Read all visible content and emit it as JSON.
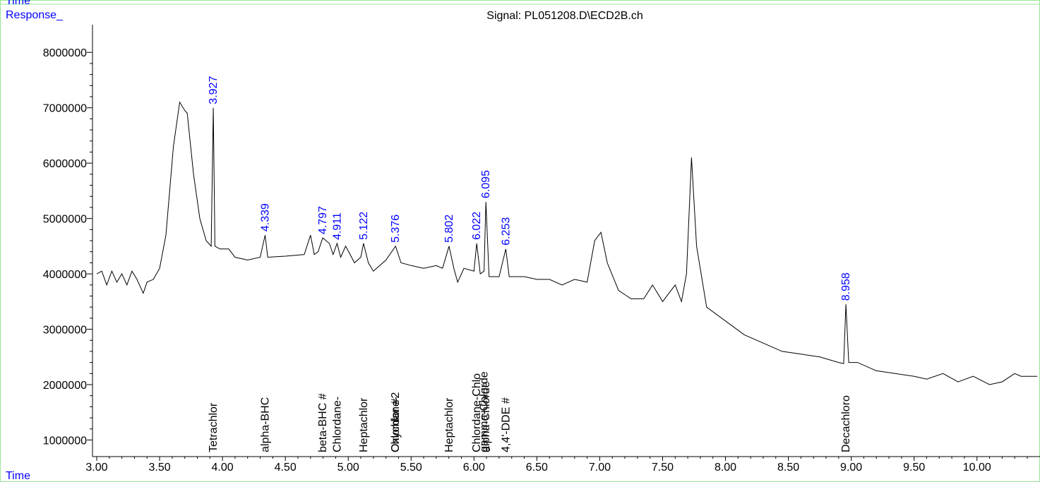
{
  "chart_data": {
    "type": "line",
    "title": "Signal: PL051208.D\\ECD2B.ch",
    "y_label": "Response_",
    "x_label": "Time",
    "top_label": "Time",
    "color": "#000000",
    "label_color": "#0000ff",
    "x": [
      3.0,
      3.04,
      3.08,
      3.12,
      3.16,
      3.2,
      3.24,
      3.28,
      3.32,
      3.35,
      3.37,
      3.4,
      3.45,
      3.5,
      3.55,
      3.58,
      3.61,
      3.66,
      3.7,
      3.72,
      3.77,
      3.82,
      3.87,
      3.91,
      3.927,
      3.94,
      3.98,
      4.05,
      4.1,
      4.2,
      4.3,
      4.339,
      4.36,
      4.5,
      4.65,
      4.7,
      4.73,
      4.76,
      4.797,
      4.85,
      4.88,
      4.911,
      4.94,
      4.98,
      5.05,
      5.1,
      5.122,
      5.16,
      5.2,
      5.3,
      5.376,
      5.42,
      5.5,
      5.6,
      5.7,
      5.75,
      5.802,
      5.84,
      5.87,
      5.92,
      6.0,
      6.022,
      6.05,
      6.08,
      6.095,
      6.12,
      6.2,
      6.253,
      6.28,
      6.4,
      6.5,
      6.6,
      6.7,
      6.8,
      6.9,
      6.96,
      7.01,
      7.06,
      7.15,
      7.25,
      7.35,
      7.42,
      7.5,
      7.6,
      7.65,
      7.69,
      7.73,
      7.77,
      7.85,
      8.0,
      8.15,
      8.3,
      8.45,
      8.6,
      8.75,
      8.9,
      8.94,
      8.958,
      8.98,
      9.05,
      9.2,
      9.35,
      9.5,
      9.6,
      9.73,
      9.85,
      9.97,
      10.1,
      10.2,
      10.3,
      10.35,
      10.48
    ],
    "values": [
      4000000,
      4050000,
      3800000,
      4050000,
      3850000,
      4000000,
      3800000,
      4050000,
      3900000,
      3750000,
      3650000,
      3850000,
      3900000,
      4100000,
      4700000,
      5500000,
      6300000,
      7100000,
      6950000,
      6900000,
      5800000,
      5000000,
      4600000,
      4500000,
      7000000,
      4500000,
      4450000,
      4450000,
      4300000,
      4250000,
      4300000,
      4700000,
      4300000,
      4320000,
      4350000,
      4700000,
      4350000,
      4400000,
      4650000,
      4550000,
      4350000,
      4550000,
      4300000,
      4500000,
      4200000,
      4300000,
      4550000,
      4200000,
      4050000,
      4250000,
      4500000,
      4200000,
      4150000,
      4100000,
      4150000,
      4100000,
      4500000,
      4100000,
      3850000,
      4100000,
      4050000,
      4550000,
      4000000,
      4050000,
      5300000,
      3950000,
      3950000,
      4450000,
      3950000,
      3950000,
      3900000,
      3900000,
      3800000,
      3900000,
      3850000,
      4600000,
      4750000,
      4200000,
      3700000,
      3550000,
      3550000,
      3800000,
      3500000,
      3800000,
      3500000,
      4000000,
      6100000,
      4500000,
      3400000,
      3150000,
      2900000,
      2750000,
      2600000,
      2550000,
      2500000,
      2400000,
      2380000,
      3450000,
      2400000,
      2400000,
      2250000,
      2200000,
      2150000,
      2100000,
      2200000,
      2050000,
      2150000,
      2000000,
      2050000,
      2200000,
      2150000,
      2150000
    ],
    "xlim": [
      3.0,
      10.49
    ],
    "ylim": [
      700000,
      8500000
    ],
    "xticks": [
      {
        "value": 3,
        "label": "3.00"
      },
      {
        "value": 3.5,
        "label": "3.50"
      },
      {
        "value": 4,
        "label": "4.00"
      },
      {
        "value": 4.5,
        "label": "4.50"
      },
      {
        "value": 5,
        "label": "5.00"
      },
      {
        "value": 5.5,
        "label": "5.50"
      },
      {
        "value": 6,
        "label": "6.00"
      },
      {
        "value": 6.5,
        "label": "6.50"
      },
      {
        "value": 7,
        "label": "7.00"
      },
      {
        "value": 7.5,
        "label": "7.50"
      },
      {
        "value": 8,
        "label": "8.00"
      },
      {
        "value": 8.5,
        "label": "8.50"
      },
      {
        "value": 9,
        "label": "9.00"
      },
      {
        "value": 9.5,
        "label": "9.50"
      },
      {
        "value": 10,
        "label": "10.00"
      }
    ],
    "yticks": [
      1000000,
      2000000,
      3000000,
      4000000,
      5000000,
      6000000,
      7000000,
      8000000
    ],
    "peaks": [
      {
        "rt": 3.927,
        "apex": 7000000
      },
      {
        "rt": 4.339,
        "apex": 4700000
      },
      {
        "rt": 4.797,
        "apex": 4650000
      },
      {
        "rt": 4.911,
        "apex": 4550000
      },
      {
        "rt": 5.122,
        "apex": 4550000
      },
      {
        "rt": 5.376,
        "apex": 4500000
      },
      {
        "rt": 5.802,
        "apex": 4500000
      },
      {
        "rt": 6.022,
        "apex": 4550000
      },
      {
        "rt": 6.095,
        "apex": 5300000
      },
      {
        "rt": 6.253,
        "apex": 4450000
      },
      {
        "rt": 8.958,
        "apex": 3450000
      }
    ],
    "compounds": [
      {
        "name": "Tetrachlor",
        "rt": 3.927
      },
      {
        "name": "alpha-BHC",
        "rt": 4.339
      },
      {
        "name": "beta-BHC #",
        "rt": 4.797
      },
      {
        "name": "Chlordane-",
        "rt": 4.911
      },
      {
        "name": "Heptachlor",
        "rt": 5.122
      },
      {
        "name": "Chlordane-",
        "rt": 5.376
      },
      {
        "name": "Oxychlor #2",
        "rt": 5.376
      },
      {
        "name": "Heptachlor",
        "rt": 5.802
      },
      {
        "name": "Chlordane-Chlo",
        "rt": 6.022
      },
      {
        "name": "gamma-Chlorde",
        "rt": 6.08
      },
      {
        "name": "alpha-Chlorde",
        "rt": 6.095
      },
      {
        "name": "4,4'-DDE #",
        "rt": 6.253
      },
      {
        "name": "Decachloro",
        "rt": 8.958
      }
    ]
  }
}
